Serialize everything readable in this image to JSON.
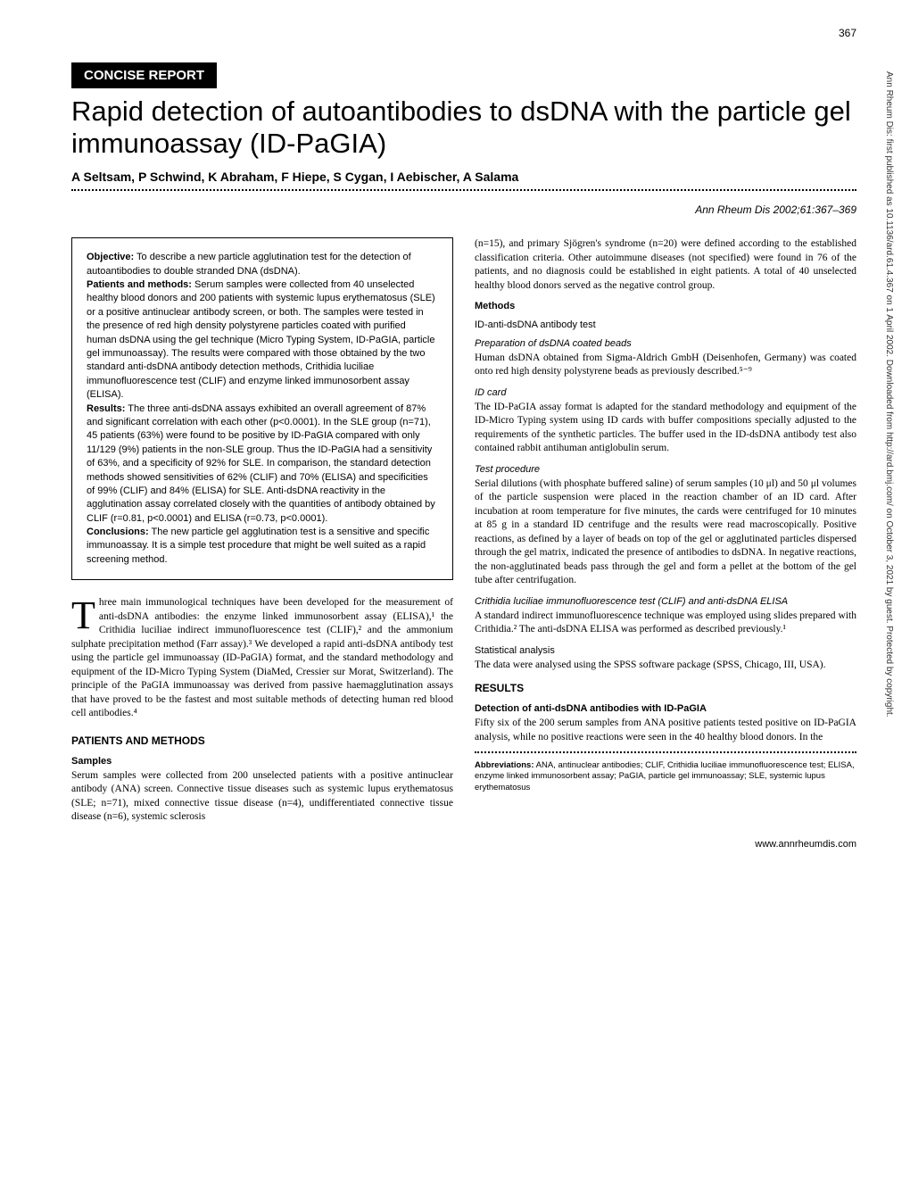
{
  "page_number": "367",
  "sidebar_citation": "Ann Rheum Dis: first published as 10.1136/ard.61.4.367 on 1 April 2002. Downloaded from http://ard.bmj.com/ on October 3, 2021 by guest. Protected by copyright.",
  "section_header": "CONCISE REPORT",
  "title": "Rapid detection of autoantibodies to dsDNA with the particle gel immunoassay (ID-PaGIA)",
  "authors": "A Seltsam, P Schwind, K Abraham, F Hiepe, S Cygan, I Aebischer, A Salama",
  "citation": "Ann Rheum Dis 2002;61:367–369",
  "abstract": {
    "objective_label": "Objective:",
    "objective": " To describe a new particle agglutination test for the detection of autoantibodies to double stranded DNA (dsDNA).",
    "patients_label": "Patients and methods:",
    "patients": " Serum samples were collected from 40 unselected healthy blood donors and 200 patients with systemic lupus erythematosus (SLE) or a positive antinuclear antibody screen, or both. The samples were tested in the presence of red high density polystyrene particles coated with purified human dsDNA using the gel technique (Micro Typing System, ID-PaGIA, particle gel immunoassay). The results were compared with those obtained by the two standard anti-dsDNA antibody detection methods, Crithidia luciliae immunofluorescence test (CLIF) and enzyme linked immunosorbent assay (ELISA).",
    "results_label": "Results:",
    "results": " The three anti-dsDNA assays exhibited an overall agreement of 87% and significant correlation with each other (p<0.0001). In the SLE group (n=71), 45 patients (63%) were found to be positive by ID-PaGIA compared with only 11/129 (9%) patients in the non-SLE group. Thus the ID-PaGIA had a sensitivity of 63%, and a specificity of 92% for SLE. In comparison, the standard detection methods showed sensitivities of 62% (CLIF) and 70% (ELISA) and specificities of 99% (CLIF) and 84% (ELISA) for SLE. Anti-dsDNA reactivity in the agglutination assay correlated closely with the quantities of antibody obtained by CLIF (r=0.81, p<0.0001) and ELISA (r=0.73, p<0.0001).",
    "conclusions_label": "Conclusions:",
    "conclusions": " The new particle gel agglutination test is a sensitive and specific immunoassay. It is a simple test procedure that might be well suited as a rapid screening method."
  },
  "intro_dropcap": "T",
  "intro": "hree main immunological techniques have been developed for the measurement of anti-dsDNA antibodies: the enzyme linked immunosorbent assay (ELISA),¹ the Crithidia luciliae indirect immunofluorescence test (CLIF),² and the ammonium sulphate precipitation method (Farr assay).³ We developed a rapid anti-dsDNA antibody test using the particle gel immunoassay (ID-PaGIA) format, and the standard methodology and equipment of the ID-Micro Typing System (DiaMed, Cressier sur Morat, Switzerland). The principle of the PaGIA immunoassay was derived from passive haemagglutination assays that have proved to be the fastest and most suitable methods of detecting human red blood cell antibodies.⁴",
  "patients_methods_header": "PATIENTS AND METHODS",
  "samples_header": "Samples",
  "samples_body": "Serum samples were collected from 200 unselected patients with a positive antinuclear antibody (ANA) screen. Connective tissue diseases such as systemic lupus erythematosus (SLE; n=71), mixed connective tissue disease (n=4), undifferentiated connective tissue disease (n=6), systemic sclerosis",
  "col2_top": "(n=15), and primary Sjögren's syndrome (n=20) were defined according to the established classification criteria. Other autoimmune diseases (not specified) were found in 76 of the patients, and no diagnosis could be established in eight patients. A total of 40 unselected healthy blood donors served as the negative control group.",
  "methods_header": "Methods",
  "idtest_header": "ID-anti-dsDNA antibody test",
  "prep_header": "Preparation of dsDNA coated beads",
  "prep_body": "Human dsDNA obtained from Sigma-Aldrich GmbH (Deisenhofen, Germany) was coated onto red high density polystyrene beads as previously described.⁵⁻⁹",
  "idcard_header": "ID card",
  "idcard_body": "The ID-PaGIA assay format is adapted for the standard methodology and equipment of the ID-Micro Typing system using ID cards with buffer compositions specially adjusted to the requirements of the synthetic particles. The buffer used in the ID-dsDNA antibody test also contained rabbit antihuman antiglobulin serum.",
  "testproc_header": "Test procedure",
  "testproc_body": "Serial dilutions (with phosphate buffered saline) of serum samples (10 μl) and 50 μl volumes of the particle suspension were placed in the reaction chamber of an ID card. After incubation at room temperature for five minutes, the cards were centrifuged for 10 minutes at 85 g in a standard ID centrifuge and the results were read macroscopically. Positive reactions, as defined by a layer of beads on top of the gel or agglutinated particles dispersed through the gel matrix, indicated the presence of antibodies to dsDNA. In negative reactions, the non-agglutinated beads pass through the gel and form a pellet at the bottom of the gel tube after centrifugation.",
  "clif_header": "Crithidia luciliae immunofluorescence test (CLIF) and anti-dsDNA ELISA",
  "clif_body": "A standard indirect immunofluorescence technique was employed using slides prepared with Crithidia.² The anti-dsDNA ELISA was performed as described previously.¹",
  "stats_header": "Statistical analysis",
  "stats_body": "The data were analysed using the SPSS software package (SPSS, Chicago, III, USA).",
  "results_header": "RESULTS",
  "detect_header": "Detection of anti-dsDNA antibodies with ID-PaGIA",
  "detect_body": "Fifty six of the 200 serum samples from ANA positive patients tested positive on ID-PaGIA analysis, while no positive reactions were seen in the 40 healthy blood donors. In the",
  "abbrev_label": "Abbreviations:",
  "abbrev_body": " ANA, antinuclear antibodies; CLIF, Crithidia luciliae immunofluorescence test; ELISA, enzyme linked immunosorbent assay; PaGIA, particle gel immunoassay; SLE, systemic lupus erythematosus",
  "footer_url": "www.annrheumdis.com"
}
